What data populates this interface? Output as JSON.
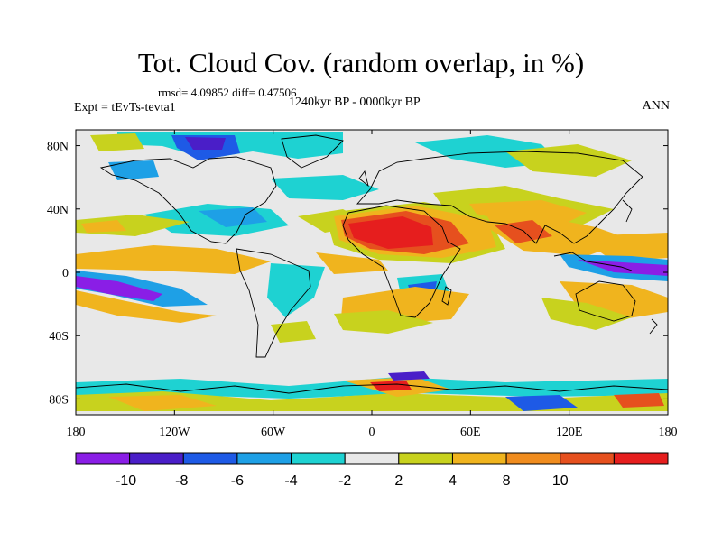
{
  "title": "Tot. Cloud Cov. (random overlap, in %)",
  "stats": "rmsd= 4.09852 diff= 0.47506",
  "period": "1240kyr BP - 0000kyr BP",
  "experiment": "Expt = tEvTs-tevta1",
  "season": "ANN",
  "map": {
    "type": "filled-contour-map",
    "lon_range": [
      -180,
      180
    ],
    "lat_range": [
      -90,
      90
    ],
    "lat_ticks": [
      {
        "v": 80,
        "label": "80N"
      },
      {
        "v": 40,
        "label": "40N"
      },
      {
        "v": 0,
        "label": "0"
      },
      {
        "v": -40,
        "label": "40S"
      },
      {
        "v": -80,
        "label": "80S"
      }
    ],
    "lon_ticks": [
      {
        "v": -180,
        "label": "180"
      },
      {
        "v": -120,
        "label": "120W"
      },
      {
        "v": -60,
        "label": "60W"
      },
      {
        "v": 0,
        "label": "0"
      },
      {
        "v": 60,
        "label": "60E"
      },
      {
        "v": 120,
        "label": "120E"
      },
      {
        "v": 180,
        "label": "180"
      }
    ]
  },
  "colorbar": {
    "colors": [
      "#8a1ee6",
      "#4a1ec8",
      "#1e5ae6",
      "#1ea0e6",
      "#1ed2d2",
      "#e8e8e8",
      "#c8d21e",
      "#f0b41e",
      "#f08c1e",
      "#e6501e",
      "#e61e1e"
    ],
    "labels": [
      "-10",
      "-8",
      "-6",
      "-4",
      "-2",
      "2",
      "4",
      "8",
      "10"
    ]
  }
}
